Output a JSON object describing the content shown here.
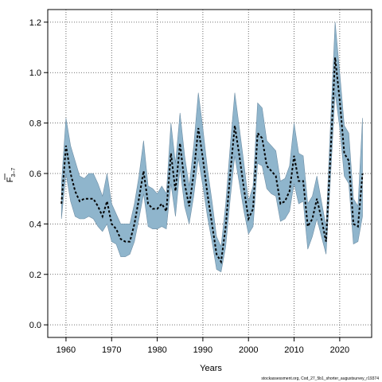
{
  "chart_data": {
    "type": "line",
    "xlabel": "Years",
    "ylabel": "F",
    "ylabel_sub": "3–7",
    "footer": "stockassessment.org, Cod_27_5b1_shorter_augustsurvey_r19374",
    "xlim": [
      1956,
      2027
    ],
    "ylim": [
      -0.05,
      1.25
    ],
    "x_ticks": [
      1960,
      1970,
      1980,
      1990,
      2000,
      2010,
      2020
    ],
    "y_ticks": [
      0.0,
      0.2,
      0.4,
      0.6,
      0.8,
      1.0,
      1.2
    ],
    "grid": true,
    "colors": {
      "band": "#8fb5cc",
      "band_edge": "#6f8fa6",
      "line": "#000000",
      "grid": "#444444"
    },
    "x": [
      1959,
      1960,
      1961,
      1962,
      1963,
      1964,
      1965,
      1966,
      1967,
      1968,
      1969,
      1970,
      1971,
      1972,
      1973,
      1974,
      1975,
      1976,
      1977,
      1978,
      1979,
      1980,
      1981,
      1982,
      1983,
      1984,
      1985,
      1986,
      1987,
      1988,
      1989,
      1990,
      1991,
      1992,
      1993,
      1994,
      1995,
      1996,
      1997,
      1998,
      1999,
      2000,
      2001,
      2002,
      2003,
      2004,
      2005,
      2006,
      2007,
      2008,
      2009,
      2010,
      2011,
      2012,
      2013,
      2014,
      2015,
      2016,
      2017,
      2018,
      2019,
      2020,
      2021,
      2022,
      2023,
      2024,
      2025
    ],
    "series": [
      {
        "values": [
          0.48,
          0.71,
          0.6,
          0.53,
          0.49,
          0.5,
          0.5,
          0.5,
          0.47,
          0.43,
          0.49,
          0.4,
          0.38,
          0.34,
          0.33,
          0.33,
          0.4,
          0.5,
          0.61,
          0.48,
          0.46,
          0.46,
          0.48,
          0.45,
          0.68,
          0.53,
          0.72,
          0.56,
          0.47,
          0.6,
          0.78,
          0.66,
          0.52,
          0.4,
          0.28,
          0.25,
          0.39,
          0.6,
          0.79,
          0.67,
          0.54,
          0.42,
          0.46,
          0.76,
          0.74,
          0.63,
          0.61,
          0.59,
          0.48,
          0.49,
          0.53,
          0.67,
          0.57,
          0.57,
          0.39,
          0.42,
          0.5,
          0.42,
          0.33,
          0.68,
          1.06,
          0.89,
          0.68,
          0.65,
          0.4,
          0.39,
          0.6
        ]
      },
      {
        "values": [
          0.42,
          0.6,
          0.49,
          0.43,
          0.42,
          0.42,
          0.43,
          0.42,
          0.39,
          0.37,
          0.4,
          0.33,
          0.32,
          0.27,
          0.27,
          0.28,
          0.33,
          0.42,
          0.52,
          0.39,
          0.38,
          0.38,
          0.39,
          0.38,
          0.56,
          0.43,
          0.62,
          0.47,
          0.4,
          0.51,
          0.66,
          0.55,
          0.43,
          0.33,
          0.22,
          0.21,
          0.31,
          0.5,
          0.67,
          0.56,
          0.45,
          0.36,
          0.39,
          0.64,
          0.63,
          0.54,
          0.52,
          0.51,
          0.41,
          0.42,
          0.45,
          0.56,
          0.48,
          0.49,
          0.3,
          0.35,
          0.42,
          0.35,
          0.28,
          0.59,
          0.92,
          0.78,
          0.59,
          0.56,
          0.32,
          0.33,
          0.43
        ]
      },
      {
        "values": [
          0.56,
          0.82,
          0.71,
          0.65,
          0.59,
          0.58,
          0.6,
          0.6,
          0.56,
          0.51,
          0.6,
          0.48,
          0.44,
          0.4,
          0.4,
          0.4,
          0.48,
          0.59,
          0.73,
          0.55,
          0.54,
          0.52,
          0.55,
          0.52,
          0.8,
          0.64,
          0.84,
          0.67,
          0.55,
          0.71,
          0.92,
          0.78,
          0.62,
          0.49,
          0.35,
          0.31,
          0.48,
          0.71,
          0.92,
          0.78,
          0.64,
          0.49,
          0.55,
          0.88,
          0.86,
          0.73,
          0.71,
          0.69,
          0.57,
          0.58,
          0.63,
          0.8,
          0.68,
          0.67,
          0.48,
          0.51,
          0.59,
          0.49,
          0.39,
          0.8,
          1.2,
          1.0,
          0.79,
          0.76,
          0.5,
          0.47,
          0.82
        ]
      }
    ]
  }
}
